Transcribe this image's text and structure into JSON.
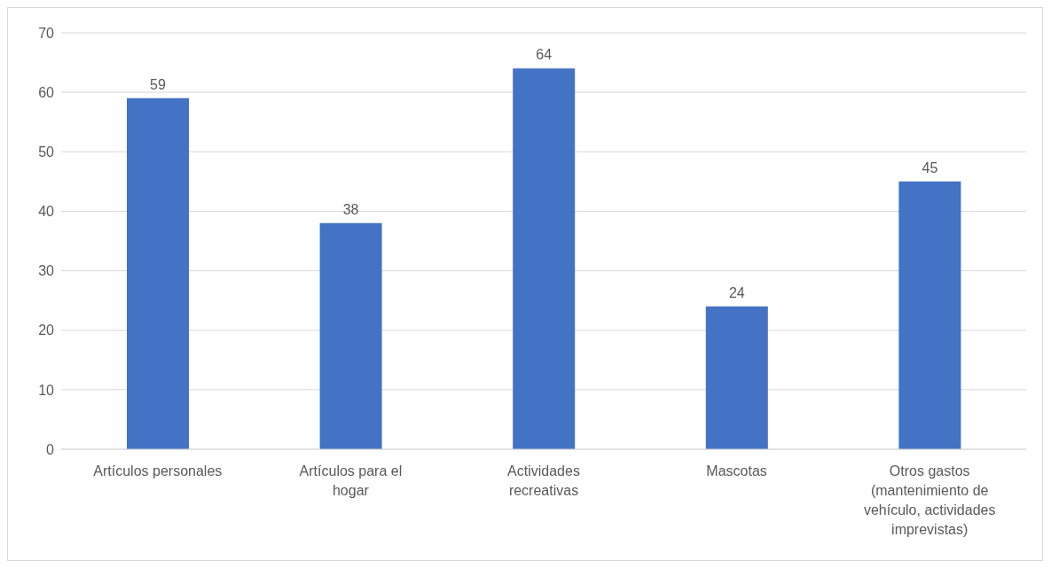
{
  "chart_data": {
    "type": "bar",
    "categories": [
      "Artículos personales",
      "Artículos para el hogar",
      "Actividades recreativas",
      "Mascotas",
      "Otros gastos (mantenimiento de vehículo, actividades imprevistas)"
    ],
    "values": [
      59,
      38,
      64,
      24,
      45
    ],
    "color": "#4472c4",
    "ylim": [
      0,
      70
    ],
    "yticks": [
      0,
      10,
      20,
      30,
      40,
      50,
      60,
      70
    ],
    "grid": "y",
    "data_labels": true
  }
}
